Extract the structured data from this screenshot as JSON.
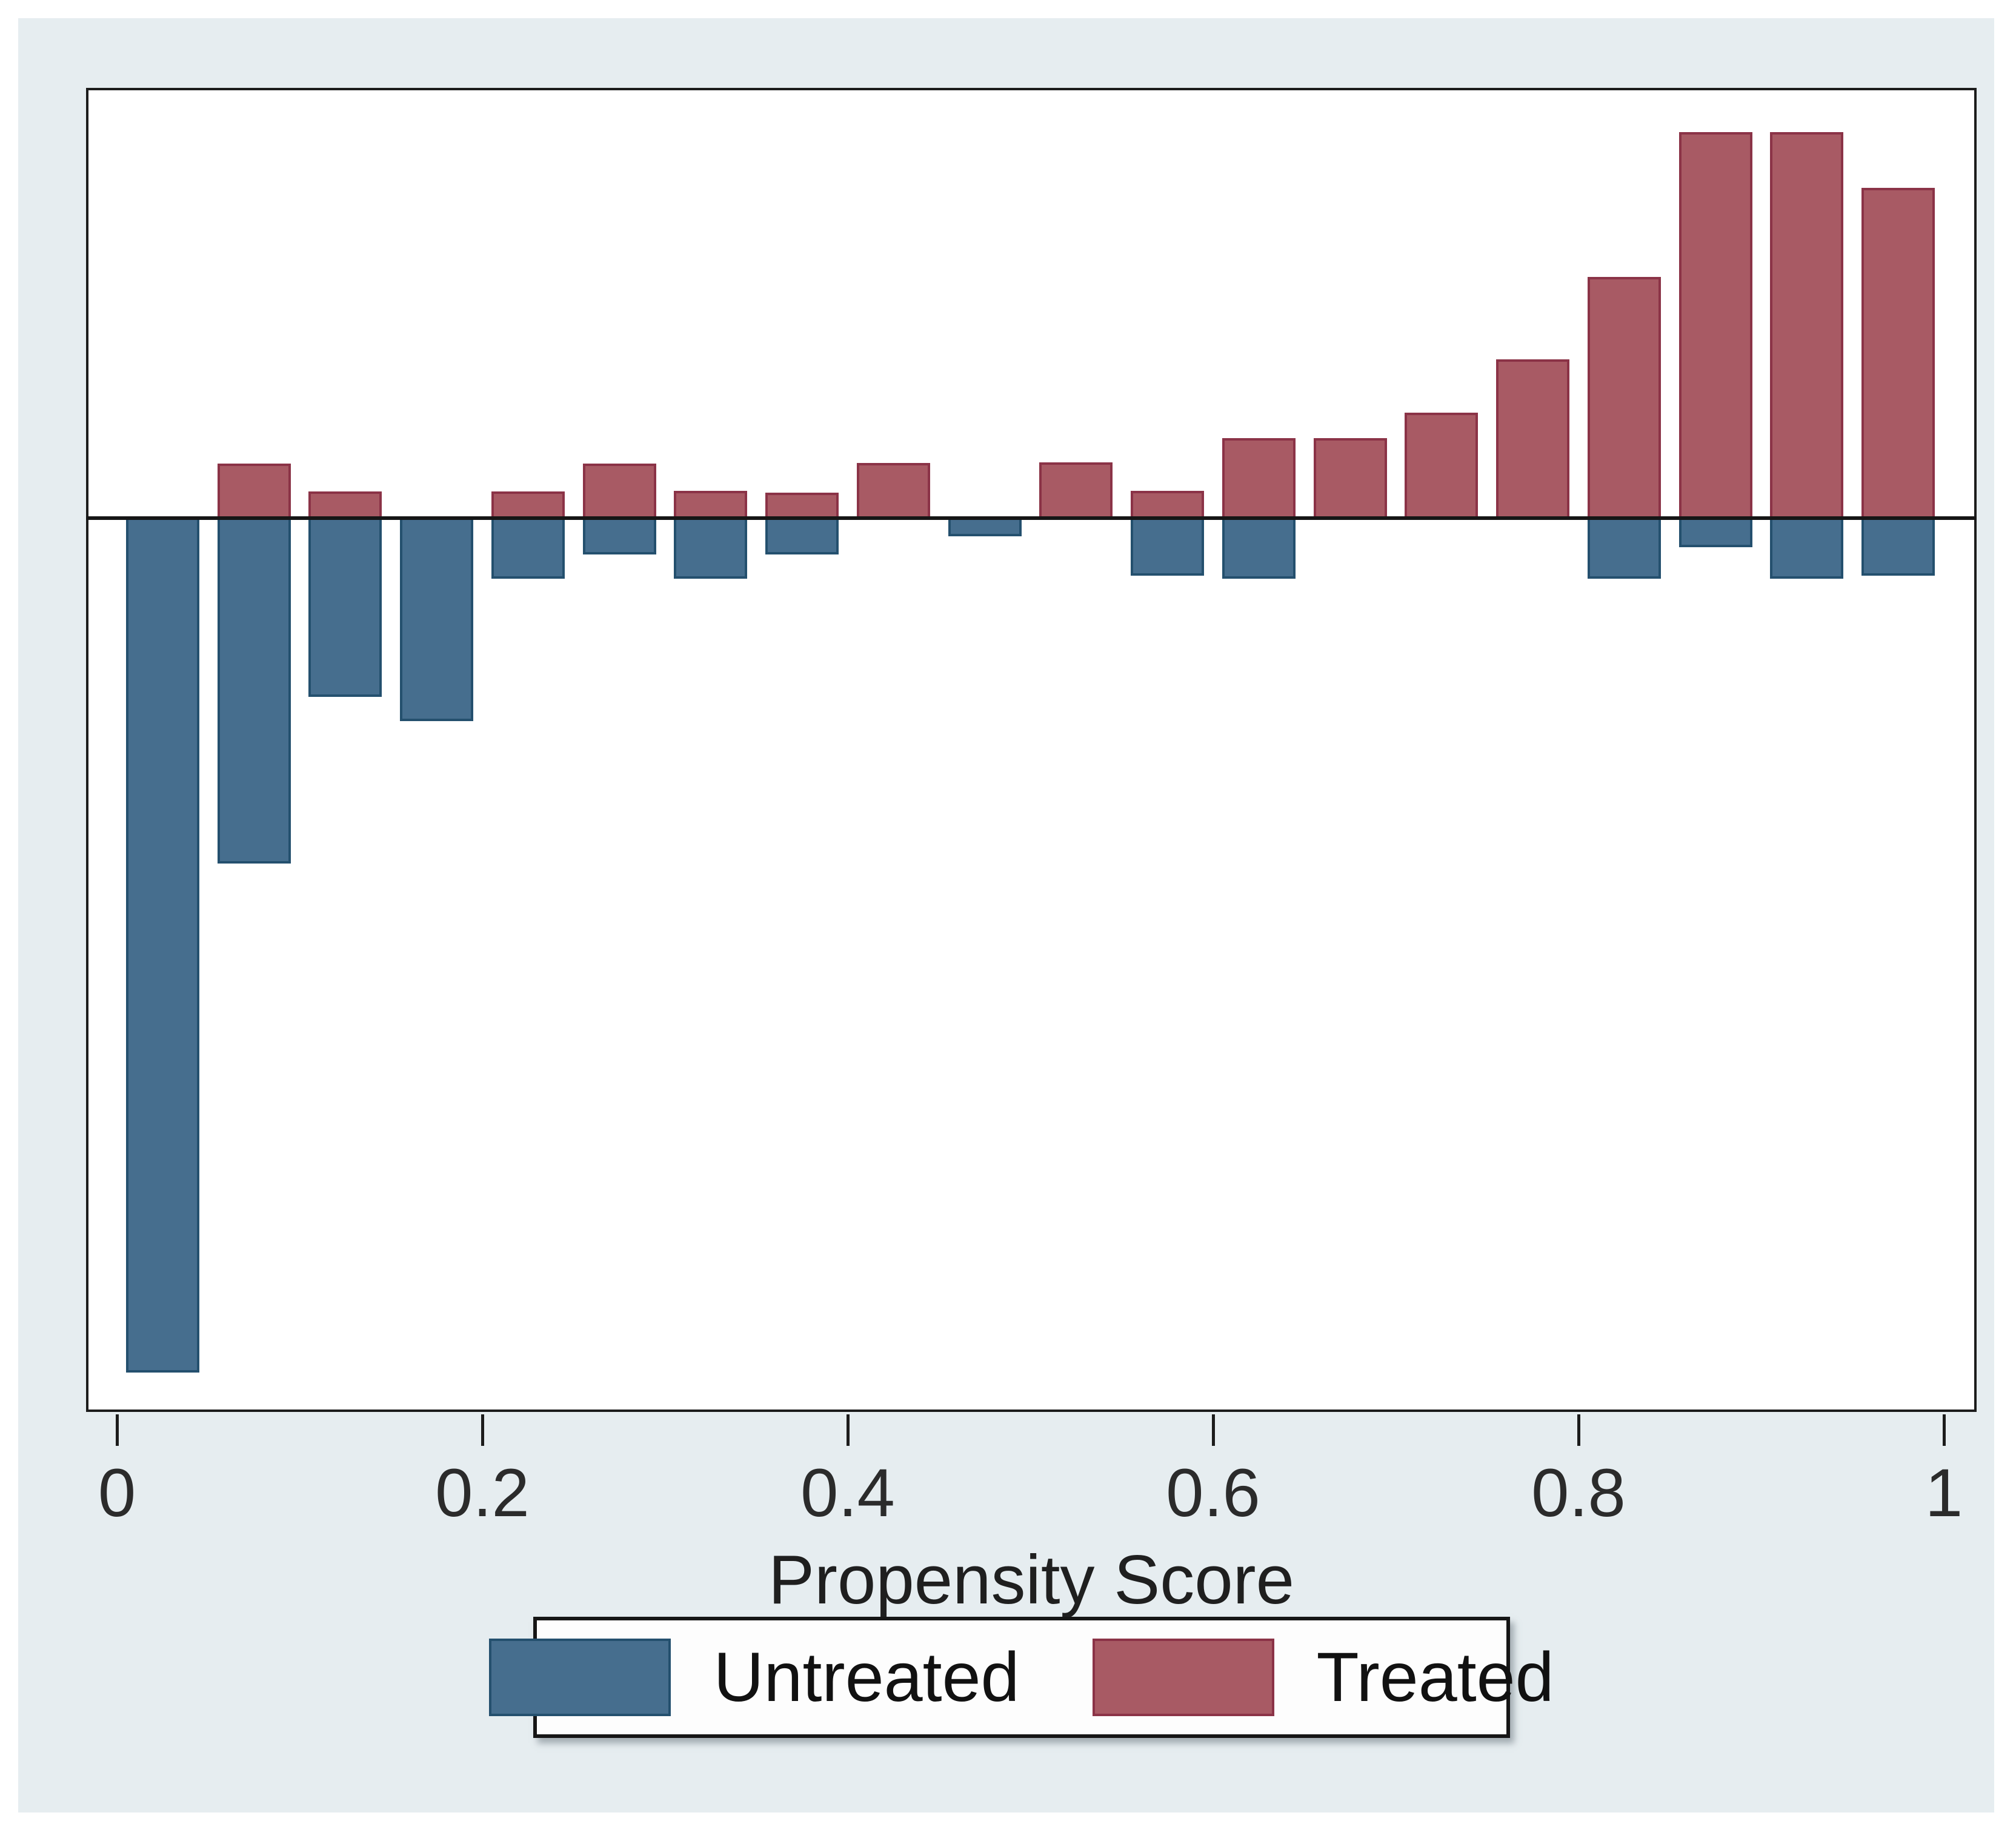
{
  "chart_data": {
    "type": "bar",
    "variant": "mirrored-histogram",
    "title": "",
    "xlabel": "Propensity Score",
    "x_tick_labels": [
      "0",
      "0.2",
      "0.4",
      "0.6",
      "0.8",
      "1"
    ],
    "x_tick_values": [
      0,
      0.2,
      0.4,
      0.6,
      0.8,
      1
    ],
    "xlim": [
      0,
      1
    ],
    "grid": false,
    "legend_position": "bottom-center",
    "bin_width": 0.05,
    "bin_starts": [
      0.0,
      0.05,
      0.1,
      0.15,
      0.2,
      0.25,
      0.3,
      0.35,
      0.4,
      0.45,
      0.5,
      0.55,
      0.6,
      0.65,
      0.7,
      0.75,
      0.8,
      0.85,
      0.9,
      0.95
    ],
    "y_units": "relative density (1.0 = tallest treated bar)",
    "ylim_up": 1.115,
    "ylim_down": 2.32,
    "series": [
      {
        "name": "Treated",
        "direction": "up",
        "color": "#a85a64",
        "border_color": "#8b3347",
        "values": [
          0,
          0.141,
          0.069,
          0,
          0.069,
          0.141,
          0.071,
          0.066,
          0.143,
          0,
          0.144,
          0.071,
          0.207,
          0.207,
          0.273,
          0.411,
          0.625,
          1.0,
          1.0,
          0.856
        ]
      },
      {
        "name": "Untreated",
        "direction": "down",
        "color": "#466e8e",
        "border_color": "#24506e",
        "values": [
          2.214,
          0.895,
          0.463,
          0.526,
          0.157,
          0.094,
          0.157,
          0.094,
          0,
          0.047,
          0,
          0.149,
          0.157,
          0,
          0,
          0,
          0.157,
          0.075,
          0.157,
          0.149
        ]
      }
    ]
  },
  "axis": {
    "xlabel": "Propensity Score"
  },
  "legend": {
    "items": [
      {
        "label": "Untreated",
        "color": "#466e8e"
      },
      {
        "label": "Treated",
        "color": "#a85a64"
      }
    ]
  },
  "colors": {
    "page_background": "#e6edf0",
    "plot_background": "#ffffff",
    "axis_line": "#1c1c1c",
    "treated_fill": "#a85a64",
    "treated_border": "#8b3347",
    "untreated_fill": "#466e8e",
    "untreated_border": "#24506e",
    "text": "#2b2b2b"
  }
}
